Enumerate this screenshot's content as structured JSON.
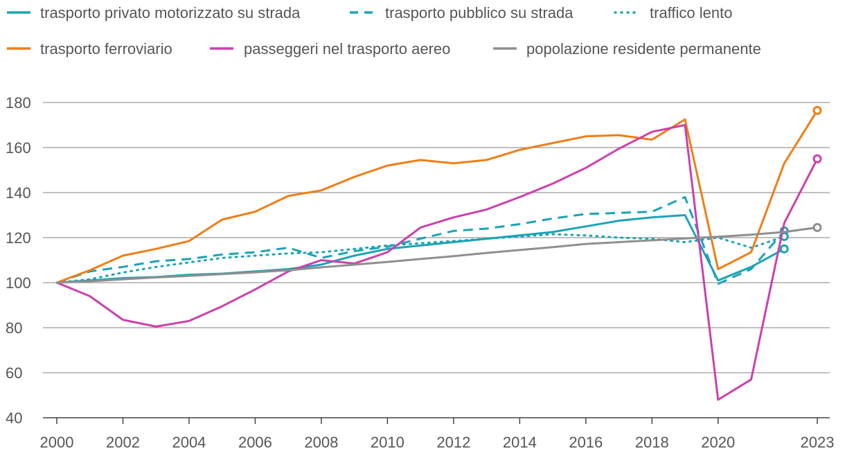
{
  "chart_data": {
    "type": "line",
    "title": "",
    "xlabel": "",
    "ylabel": "",
    "ylim": [
      40,
      180
    ],
    "xlim": [
      2000,
      2023
    ],
    "y_ticks": [
      "180",
      "160",
      "140",
      "120",
      "100",
      "80",
      "60",
      "40"
    ],
    "y_tick_values": [
      180,
      160,
      140,
      120,
      100,
      80,
      60,
      40
    ],
    "x_ticks": [
      "2000",
      "2002",
      "2004",
      "2006",
      "2008",
      "2010",
      "2012",
      "2014",
      "2016",
      "2018",
      "2020",
      "2023"
    ],
    "x_tick_values": [
      2000,
      2002,
      2004,
      2006,
      2008,
      2010,
      2012,
      2014,
      2016,
      2018,
      2020,
      2023
    ],
    "grid": true,
    "legend_position": "top",
    "series": [
      {
        "name": "trasporto privato motorizzato su strada",
        "color": "#1ba3b5",
        "style": "solid",
        "x": [
          2000,
          2001,
          2002,
          2003,
          2004,
          2005,
          2006,
          2007,
          2008,
          2009,
          2010,
          2011,
          2012,
          2013,
          2014,
          2015,
          2016,
          2017,
          2018,
          2019,
          2020,
          2021,
          2022
        ],
        "values": [
          100,
          101,
          102,
          102.5,
          103.5,
          104,
          105,
          106,
          108,
          112,
          115,
          116.5,
          118,
          119.5,
          121,
          122.5,
          125,
          127.5,
          129,
          130,
          101,
          107,
          115
        ],
        "end_marker": true
      },
      {
        "name": "trasporto pubblico su strada",
        "color": "#1ba3b5",
        "style": "dashed",
        "x": [
          2000,
          2001,
          2002,
          2003,
          2004,
          2005,
          2006,
          2007,
          2008,
          2009,
          2010,
          2011,
          2012,
          2013,
          2014,
          2015,
          2016,
          2017,
          2018,
          2019,
          2020,
          2021,
          2022
        ],
        "values": [
          100,
          105,
          107,
          109.5,
          110.5,
          112.5,
          113.5,
          115.5,
          111,
          114,
          116,
          119.5,
          123,
          124,
          126,
          128.5,
          130.5,
          131,
          131.5,
          138,
          99.5,
          106,
          123
        ],
        "end_marker": true
      },
      {
        "name": "traffico lento",
        "color": "#1ba3b5",
        "style": "dotted",
        "x": [
          2000,
          2001,
          2002,
          2003,
          2004,
          2005,
          2006,
          2007,
          2008,
          2009,
          2010,
          2011,
          2012,
          2013,
          2014,
          2015,
          2016,
          2017,
          2018,
          2019,
          2020,
          2021,
          2022
        ],
        "values": [
          100,
          101.5,
          104.5,
          107,
          109,
          111,
          112,
          113,
          113.5,
          115,
          116.5,
          117.5,
          118.5,
          119.5,
          120.5,
          121.5,
          121,
          120,
          119.5,
          118,
          120,
          115.5,
          120.5
        ],
        "end_marker": true
      },
      {
        "name": "trasporto ferroviario",
        "color": "#f07d16",
        "style": "solid",
        "x": [
          2000,
          2001,
          2002,
          2003,
          2004,
          2005,
          2006,
          2007,
          2008,
          2009,
          2010,
          2011,
          2012,
          2013,
          2014,
          2015,
          2016,
          2017,
          2018,
          2019,
          2020,
          2021,
          2022,
          2023
        ],
        "values": [
          100,
          105.5,
          112,
          115,
          118.5,
          128,
          131.5,
          138.5,
          141,
          147,
          152,
          154.5,
          153,
          154.5,
          159,
          162,
          165,
          165.5,
          163.5,
          172.5,
          106,
          113.5,
          153,
          176.5
        ],
        "end_marker": true
      },
      {
        "name": "passeggeri nel trasporto aereo",
        "color": "#cc3fae",
        "style": "solid",
        "x": [
          2000,
          2001,
          2002,
          2003,
          2004,
          2005,
          2006,
          2007,
          2008,
          2009,
          2010,
          2011,
          2012,
          2013,
          2014,
          2015,
          2016,
          2017,
          2018,
          2019,
          2020,
          2021,
          2022,
          2023
        ],
        "values": [
          100,
          94,
          83.5,
          80.5,
          83,
          89.5,
          97,
          105,
          110,
          108.5,
          113.5,
          124.5,
          129,
          132.5,
          138,
          144,
          151,
          159.5,
          167,
          170,
          48,
          57,
          126.5,
          155
        ],
        "end_marker": true
      },
      {
        "name": "popolazione residente permanente",
        "color": "#8f8f8f",
        "style": "solid",
        "x": [
          2000,
          2001,
          2002,
          2003,
          2004,
          2005,
          2006,
          2007,
          2008,
          2009,
          2010,
          2011,
          2012,
          2013,
          2014,
          2015,
          2016,
          2017,
          2018,
          2019,
          2020,
          2021,
          2022,
          2023
        ],
        "values": [
          100,
          100.6,
          101.5,
          102.3,
          103,
          103.8,
          104.6,
          105.5,
          106.8,
          108,
          109.2,
          110.5,
          111.8,
          113.2,
          114.5,
          115.8,
          117.2,
          118,
          118.8,
          119.6,
          120.4,
          121.3,
          122.5,
          124.5
        ],
        "end_marker": true
      }
    ]
  }
}
